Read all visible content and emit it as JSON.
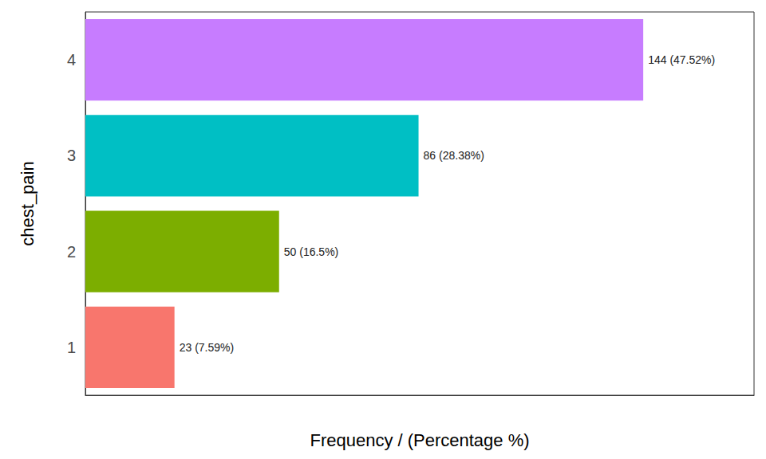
{
  "chart_data": {
    "type": "bar",
    "orientation": "horizontal",
    "x_label": "Frequency / (Percentage %)",
    "y_label": "chest_pain",
    "categories": [
      "1",
      "2",
      "3",
      "4"
    ],
    "values": [
      23,
      50,
      86,
      144
    ],
    "value_labels": [
      "23 (7.59%)",
      "50 (16.5%)",
      "86 (28.38%)",
      "144 (47.52%)"
    ],
    "colors": [
      "#F8766D",
      "#7CAE00",
      "#00BFC4",
      "#C77CFF"
    ],
    "xlim": [
      0,
      172.6
    ],
    "data_labels": true,
    "tick_labels": "y",
    "grid": false
  }
}
